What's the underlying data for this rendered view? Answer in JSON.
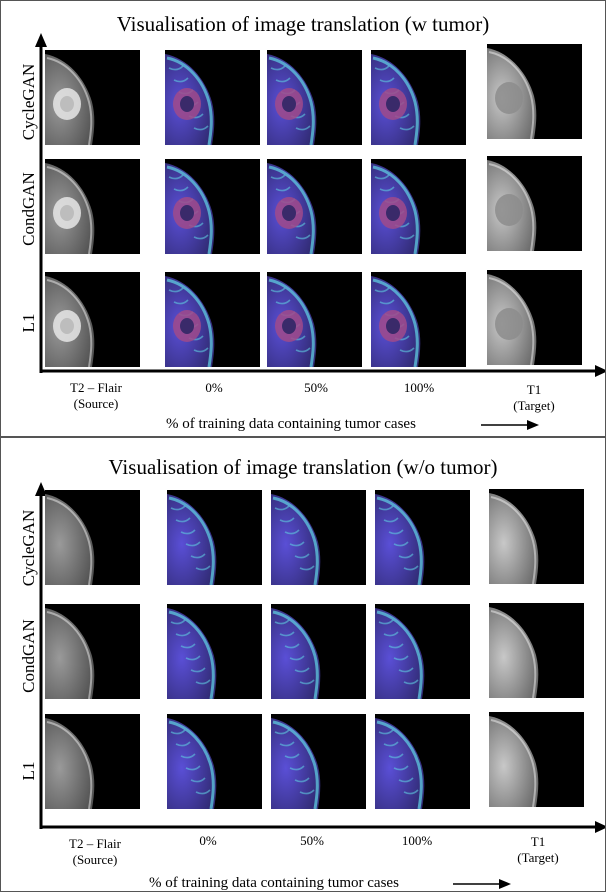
{
  "panels": [
    {
      "title": "Visualisation of image translation (w tumor)",
      "rows": [
        "CycleGAN",
        "CondGAN",
        "L1"
      ],
      "columns": [
        {
          "line1": "T2 – Flair",
          "line2": "(Source)"
        },
        {
          "line1": "0%",
          "line2": ""
        },
        {
          "line1": "50%",
          "line2": ""
        },
        {
          "line1": "100%",
          "line2": ""
        },
        {
          "line1": "T1",
          "line2": "(Target)"
        }
      ],
      "x_caption": "% of training data containing tumor cases",
      "tumor": true
    },
    {
      "title": "Visualisation of image translation (w/o tumor)",
      "rows": [
        "CycleGAN",
        "CondGAN",
        "L1"
      ],
      "columns": [
        {
          "line1": "T2 – Flair",
          "line2": "(Source)"
        },
        {
          "line1": "0%",
          "line2": ""
        },
        {
          "line1": "50%",
          "line2": ""
        },
        {
          "line1": "100%",
          "line2": ""
        },
        {
          "line1": "T1",
          "line2": "(Target)"
        }
      ],
      "x_caption": "% of training data containing tumor cases",
      "tumor": false
    }
  ],
  "image_kinds": [
    "flair-source",
    "translated",
    "translated",
    "translated",
    "t1-target"
  ],
  "colors": {
    "axis": "#000000",
    "flair": "#9a9a9a",
    "t1": "#c8c8c8",
    "translated": "#5a4fd6",
    "translated_edge": "#5fc9e0",
    "tumor": "#a04a8a"
  }
}
